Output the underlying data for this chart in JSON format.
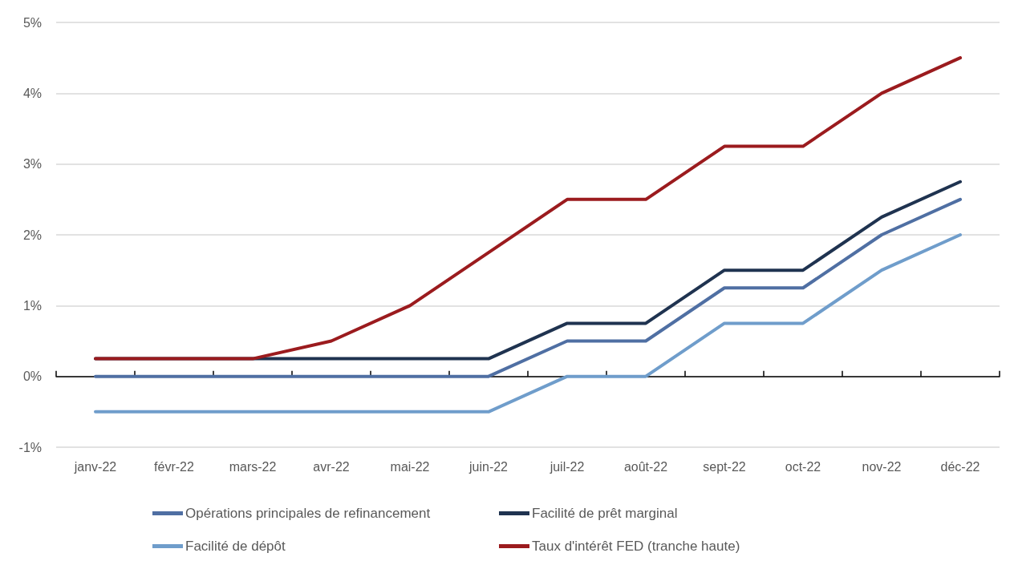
{
  "chart_data": {
    "type": "line",
    "categories": [
      "janv-22",
      "févr-22",
      "mars-22",
      "avr-22",
      "mai-22",
      "juin-22",
      "juil-22",
      "août-22",
      "sept-22",
      "oct-22",
      "nov-22",
      "déc-22"
    ],
    "series": [
      {
        "name": "Opérations principales de refinancement",
        "color": "#4f6fa3",
        "values": [
          0,
          0,
          0,
          0,
          0,
          0,
          0.5,
          0.5,
          1.25,
          1.25,
          2,
          2.5
        ]
      },
      {
        "name": "Facilité de prêt marginal",
        "color": "#1f3350",
        "values": [
          0.25,
          0.25,
          0.25,
          0.25,
          0.25,
          0.25,
          0.75,
          0.75,
          1.5,
          1.5,
          2.25,
          2.75
        ]
      },
      {
        "name": "Facilité de dépôt",
        "color": "#6f9dcb",
        "values": [
          -0.5,
          -0.5,
          -0.5,
          -0.5,
          -0.5,
          -0.5,
          0,
          0,
          0.75,
          0.75,
          1.5,
          2
        ]
      },
      {
        "name": "Taux d'intérêt FED (tranche haute)",
        "color": "#9b1b1e",
        "values": [
          0.25,
          0.25,
          0.25,
          0.5,
          1,
          1.75,
          2.5,
          2.5,
          3.25,
          3.25,
          4,
          4.5
        ]
      }
    ],
    "ylim": [
      -1,
      5
    ],
    "yticks": [
      {
        "value": -1,
        "label": "-1%"
      },
      {
        "value": 0,
        "label": "0%"
      },
      {
        "value": 1,
        "label": "1%"
      },
      {
        "value": 2,
        "label": "2%"
      },
      {
        "value": 3,
        "label": "3%"
      },
      {
        "value": 4,
        "label": "4%"
      },
      {
        "value": 5,
        "label": "5%"
      }
    ],
    "grid": "y",
    "legend": "bottom",
    "marker": "none",
    "line_style": "solid"
  }
}
